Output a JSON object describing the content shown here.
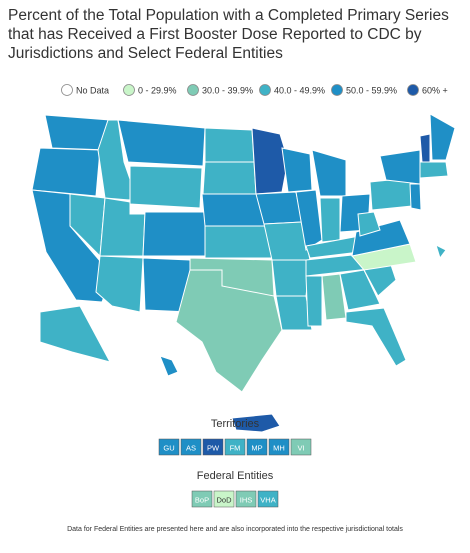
{
  "title": "Percent of the Total Population with a Completed Primary Series that has Received a First Booster Dose Reported to CDC by Jurisdictions and Select Federal Entities",
  "legend": [
    {
      "label": "No Data",
      "color": "#ffffff"
    },
    {
      "label": "0 - 29.9%",
      "color": "#c9f5c9"
    },
    {
      "label": "30.0 - 39.9%",
      "color": "#7fcbb5"
    },
    {
      "label": "40.0 - 49.9%",
      "color": "#3fb2c6"
    },
    {
      "label": "50.0 - 59.9%",
      "color": "#1f8fc6"
    },
    {
      "label": "60% +",
      "color": "#1e5aa8"
    }
  ],
  "territories": {
    "heading": "Territories",
    "items": [
      {
        "label": "GU",
        "color": "#1f8fc6"
      },
      {
        "label": "AS",
        "color": "#1f8fc6"
      },
      {
        "label": "PW",
        "color": "#1e5aa8"
      },
      {
        "label": "FM",
        "color": "#3fb2c6"
      },
      {
        "label": "MP",
        "color": "#1f8fc6"
      },
      {
        "label": "MH",
        "color": "#1f8fc6"
      },
      {
        "label": "VI",
        "color": "#7fcbb5"
      }
    ]
  },
  "federal_entities": {
    "heading": "Federal Entities",
    "items": [
      {
        "label": "BoP",
        "color": "#7fcbb5"
      },
      {
        "label": "DoD",
        "color": "#c9f5c9"
      },
      {
        "label": "IHS",
        "color": "#7fcbb5"
      },
      {
        "label": "VHA",
        "color": "#3fb2c6"
      }
    ]
  },
  "footnote": "Data for Federal Entities are presented here and are also incorporated into the respective jurisdictional totals"
}
